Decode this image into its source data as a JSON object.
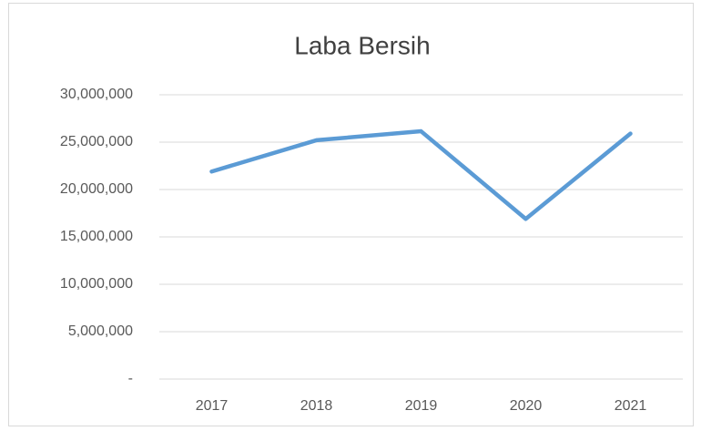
{
  "chart_data": {
    "type": "line",
    "title": "Laba Bersih",
    "categories": [
      "2017",
      "2018",
      "2019",
      "2020",
      "2021"
    ],
    "values": [
      21900000,
      25200000,
      26150000,
      16900000,
      25900000
    ],
    "color": "#5b9bd5",
    "ylim": [
      0,
      30000000
    ],
    "yticks": [
      {
        "value": 0,
        "label": "-"
      },
      {
        "value": 5000000,
        "label": "5,000,000"
      },
      {
        "value": 10000000,
        "label": "10,000,000"
      },
      {
        "value": 15000000,
        "label": "15,000,000"
      },
      {
        "value": 20000000,
        "label": "20,000,000"
      },
      {
        "value": 25000000,
        "label": "25,000,000"
      },
      {
        "value": 30000000,
        "label": "30,000,000"
      }
    ],
    "grid": true
  }
}
